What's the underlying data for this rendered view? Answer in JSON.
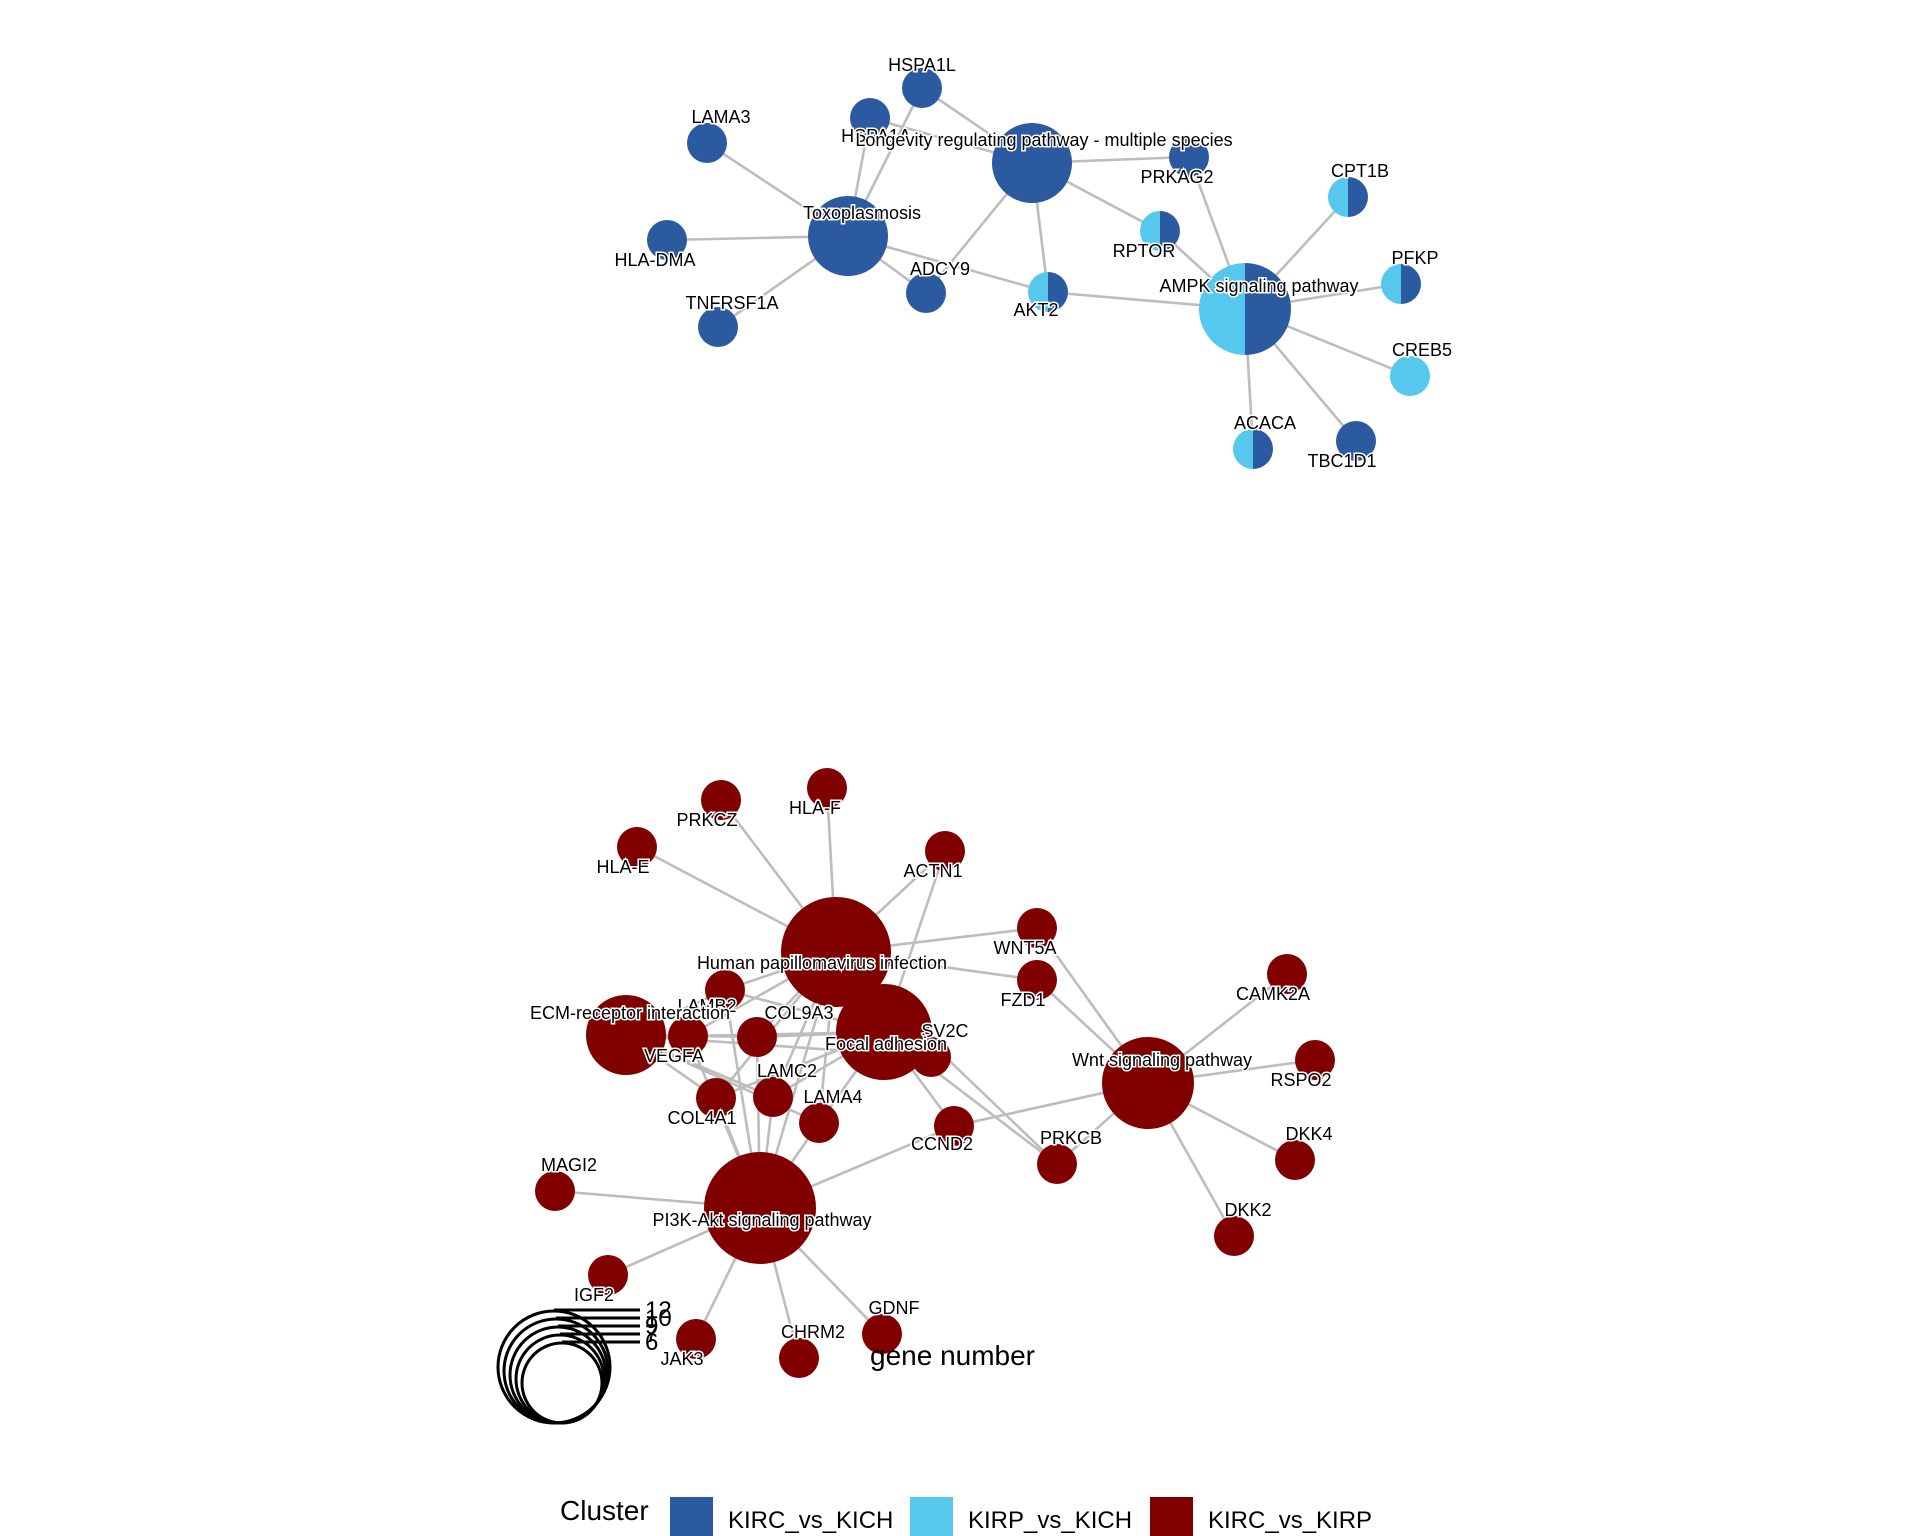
{
  "colors": {
    "KIRC_vs_KICH": "#2c5aa0",
    "KIRP_vs_KICH": "#56c8ed",
    "KIRC_vs_KIRP": "#800000",
    "edge": "#bdbdbd"
  },
  "legend": {
    "title": "Cluster",
    "entries": [
      {
        "name": "KIRC_vs_KICH",
        "color": "#2c5aa0"
      },
      {
        "name": "KIRP_vs_KICH",
        "color": "#56c8ed"
      },
      {
        "name": "KIRC_vs_KIRP",
        "color": "#800000"
      }
    ]
  },
  "size_legend": {
    "title": "gene number",
    "values": [
      "12",
      "10",
      "9",
      "7",
      "6"
    ]
  },
  "networks": [
    {
      "name": "top",
      "nodes": [
        {
          "id": "HSPA1L",
          "label": "HSPA1L",
          "kind": "gene",
          "slices": [
            {
              "c": "KIRC_vs_KICH"
            }
          ]
        },
        {
          "id": "HSPA1A",
          "label": "HSPA1A",
          "kind": "gene",
          "slices": [
            {
              "c": "KIRC_vs_KICH"
            }
          ]
        },
        {
          "id": "LAMA3",
          "label": "LAMA3",
          "kind": "gene",
          "slices": [
            {
              "c": "KIRC_vs_KICH"
            }
          ]
        },
        {
          "id": "HLA-DMA",
          "label": "HLA-DMA",
          "kind": "gene",
          "slices": [
            {
              "c": "KIRC_vs_KICH"
            }
          ]
        },
        {
          "id": "TNFRSF1A",
          "label": "TNFRSF1A",
          "kind": "gene",
          "slices": [
            {
              "c": "KIRC_vs_KICH"
            }
          ]
        },
        {
          "id": "ADCY9",
          "label": "ADCY9",
          "kind": "gene",
          "slices": [
            {
              "c": "KIRC_vs_KICH"
            }
          ]
        },
        {
          "id": "AKT2",
          "label": "AKT2",
          "kind": "gene",
          "slices": [
            {
              "c": "KIRP_vs_KICH"
            },
            {
              "c": "KIRC_vs_KICH"
            }
          ]
        },
        {
          "id": "PRKAG2",
          "label": "PRKAG2",
          "kind": "gene",
          "slices": [
            {
              "c": "KIRC_vs_KICH"
            }
          ]
        },
        {
          "id": "RPTOR",
          "label": "RPTOR",
          "kind": "gene",
          "slices": [
            {
              "c": "KIRP_vs_KICH"
            },
            {
              "c": "KIRC_vs_KICH"
            }
          ]
        },
        {
          "id": "CPT1B",
          "label": "CPT1B",
          "kind": "gene",
          "slices": [
            {
              "c": "KIRP_vs_KICH"
            },
            {
              "c": "KIRC_vs_KICH"
            }
          ]
        },
        {
          "id": "PFKP",
          "label": "PFKP",
          "kind": "gene",
          "slices": [
            {
              "c": "KIRP_vs_KICH"
            },
            {
              "c": "KIRC_vs_KICH"
            }
          ]
        },
        {
          "id": "CREB5",
          "label": "CREB5",
          "kind": "gene",
          "slices": [
            {
              "c": "KIRP_vs_KICH"
            }
          ]
        },
        {
          "id": "ACACA",
          "label": "ACACA",
          "kind": "gene",
          "slices": [
            {
              "c": "KIRP_vs_KICH"
            },
            {
              "c": "KIRC_vs_KICH"
            }
          ]
        },
        {
          "id": "TBC1D1",
          "label": "TBC1D1",
          "kind": "gene",
          "slices": [
            {
              "c": "KIRC_vs_KICH"
            }
          ]
        },
        {
          "id": "Toxoplasmosis",
          "label": "Toxoplasmosis",
          "kind": "pathway",
          "slices": [
            {
              "c": "KIRC_vs_KICH"
            }
          ]
        },
        {
          "id": "Longevity",
          "label": "Longevity regulating pathway - multiple species",
          "kind": "pathway",
          "slices": [
            {
              "c": "KIRC_vs_KICH"
            }
          ]
        },
        {
          "id": "AMPK",
          "label": "AMPK signaling pathway",
          "kind": "pathway",
          "slices": [
            {
              "c": "KIRP_vs_KICH"
            },
            {
              "c": "KIRC_vs_KICH"
            }
          ]
        }
      ],
      "edges": [
        [
          "Toxoplasmosis",
          "LAMA3"
        ],
        [
          "Toxoplasmosis",
          "HLA-DMA"
        ],
        [
          "Toxoplasmosis",
          "TNFRSF1A"
        ],
        [
          "Toxoplasmosis",
          "HSPA1A"
        ],
        [
          "Toxoplasmosis",
          "HSPA1L"
        ],
        [
          "Toxoplasmosis",
          "ADCY9"
        ],
        [
          "Toxoplasmosis",
          "AKT2"
        ],
        [
          "Longevity",
          "HSPA1A"
        ],
        [
          "Longevity",
          "HSPA1L"
        ],
        [
          "Longevity",
          "PRKAG2"
        ],
        [
          "Longevity",
          "RPTOR"
        ],
        [
          "Longevity",
          "AKT2"
        ],
        [
          "Longevity",
          "ADCY9"
        ],
        [
          "AMPK",
          "AKT2"
        ],
        [
          "AMPK",
          "PRKAG2"
        ],
        [
          "AMPK",
          "RPTOR"
        ],
        [
          "AMPK",
          "CPT1B"
        ],
        [
          "AMPK",
          "PFKP"
        ],
        [
          "AMPK",
          "CREB5"
        ],
        [
          "AMPK",
          "ACACA"
        ],
        [
          "AMPK",
          "TBC1D1"
        ]
      ]
    },
    {
      "name": "bottom",
      "nodes": [
        {
          "id": "PRKCZ",
          "label": "PRKCZ",
          "kind": "gene",
          "slices": [
            {
              "c": "KIRC_vs_KIRP"
            }
          ]
        },
        {
          "id": "HLA-F",
          "label": "HLA-F",
          "kind": "gene",
          "slices": [
            {
              "c": "KIRC_vs_KIRP"
            }
          ]
        },
        {
          "id": "HLA-E",
          "label": "HLA-E",
          "kind": "gene",
          "slices": [
            {
              "c": "KIRC_vs_KIRP"
            }
          ]
        },
        {
          "id": "ACTN1",
          "label": "ACTN1",
          "kind": "gene",
          "slices": [
            {
              "c": "KIRC_vs_KIRP"
            }
          ]
        },
        {
          "id": "WNT5A",
          "label": "WNT5A",
          "kind": "gene",
          "slices": [
            {
              "c": "KIRC_vs_KIRP"
            }
          ]
        },
        {
          "id": "FZD1",
          "label": "FZD1",
          "kind": "gene",
          "slices": [
            {
              "c": "KIRC_vs_KIRP"
            }
          ]
        },
        {
          "id": "CAMK2A",
          "label": "CAMK2A",
          "kind": "gene",
          "slices": [
            {
              "c": "KIRC_vs_KIRP"
            }
          ]
        },
        {
          "id": "RSPO2",
          "label": "RSPO2",
          "kind": "gene",
          "slices": [
            {
              "c": "KIRC_vs_KIRP"
            }
          ]
        },
        {
          "id": "DKK4",
          "label": "DKK4",
          "kind": "gene",
          "slices": [
            {
              "c": "KIRC_vs_KIRP"
            }
          ]
        },
        {
          "id": "DKK2",
          "label": "DKK2",
          "kind": "gene",
          "slices": [
            {
              "c": "KIRC_vs_KIRP"
            }
          ]
        },
        {
          "id": "PRKCB",
          "label": "PRKCB",
          "kind": "gene",
          "slices": [
            {
              "c": "KIRC_vs_KIRP"
            }
          ]
        },
        {
          "id": "CCND2",
          "label": "CCND2",
          "kind": "gene",
          "slices": [
            {
              "c": "KIRC_vs_KIRP"
            }
          ]
        },
        {
          "id": "SV2C",
          "label": "SV2C",
          "kind": "gene",
          "slices": [
            {
              "c": "KIRC_vs_KIRP"
            }
          ]
        },
        {
          "id": "LAMB2",
          "label": "LAMB2",
          "kind": "gene",
          "slices": [
            {
              "c": "KIRC_vs_KIRP"
            }
          ]
        },
        {
          "id": "COL9A3",
          "label": "COL9A3",
          "kind": "gene",
          "slices": [
            {
              "c": "KIRC_vs_KIRP"
            }
          ]
        },
        {
          "id": "VEGFA",
          "label": "VEGFA",
          "kind": "gene",
          "slices": [
            {
              "c": "KIRC_vs_KIRP"
            }
          ]
        },
        {
          "id": "LAMC2",
          "label": "LAMC2",
          "kind": "gene",
          "slices": [
            {
              "c": "KIRC_vs_KIRP"
            }
          ]
        },
        {
          "id": "COL4A1",
          "label": "COL4A1",
          "kind": "gene",
          "slices": [
            {
              "c": "KIRC_vs_KIRP"
            }
          ]
        },
        {
          "id": "LAMA4",
          "label": "LAMA4",
          "kind": "gene",
          "slices": [
            {
              "c": "KIRC_vs_KIRP"
            }
          ]
        },
        {
          "id": "MAGI2",
          "label": "MAGI2",
          "kind": "gene",
          "slices": [
            {
              "c": "KIRC_vs_KIRP"
            }
          ]
        },
        {
          "id": "IGF2",
          "label": "IGF2",
          "kind": "gene",
          "slices": [
            {
              "c": "KIRC_vs_KIRP"
            }
          ]
        },
        {
          "id": "JAK3",
          "label": "JAK3",
          "kind": "gene",
          "slices": [
            {
              "c": "KIRC_vs_KIRP"
            }
          ]
        },
        {
          "id": "CHRM2",
          "label": "CHRM2",
          "kind": "gene",
          "slices": [
            {
              "c": "KIRC_vs_KIRP"
            }
          ]
        },
        {
          "id": "GDNF",
          "label": "GDNF",
          "kind": "gene",
          "slices": [
            {
              "c": "KIRC_vs_KIRP"
            }
          ]
        },
        {
          "id": "HPV",
          "label": "Human papillomavirus infection",
          "kind": "pathway",
          "slices": [
            {
              "c": "KIRC_vs_KIRP"
            }
          ]
        },
        {
          "id": "ECM",
          "label": "ECM-receptor interaction",
          "kind": "pathway",
          "slices": [
            {
              "c": "KIRC_vs_KIRP"
            }
          ]
        },
        {
          "id": "Focal",
          "label": "Focal adhesion",
          "kind": "pathway",
          "slices": [
            {
              "c": "KIRC_vs_KIRP"
            }
          ]
        },
        {
          "id": "Wnt",
          "label": "Wnt signaling pathway",
          "kind": "pathway",
          "slices": [
            {
              "c": "KIRC_vs_KIRP"
            }
          ]
        },
        {
          "id": "PI3K",
          "label": "PI3K-Akt signaling pathway",
          "kind": "pathway",
          "slices": [
            {
              "c": "KIRC_vs_KIRP"
            }
          ]
        }
      ],
      "edges": [
        [
          "HPV",
          "PRKCZ"
        ],
        [
          "HPV",
          "HLA-F"
        ],
        [
          "HPV",
          "HLA-E"
        ],
        [
          "HPV",
          "ACTN1"
        ],
        [
          "HPV",
          "WNT5A"
        ],
        [
          "HPV",
          "FZD1"
        ],
        [
          "HPV",
          "LAMB2"
        ],
        [
          "HPV",
          "COL9A3"
        ],
        [
          "HPV",
          "VEGFA"
        ],
        [
          "HPV",
          "LAMC2"
        ],
        [
          "HPV",
          "COL4A1"
        ],
        [
          "HPV",
          "LAMA4"
        ],
        [
          "HPV",
          "PRKCB"
        ],
        [
          "HPV",
          "PI3K"
        ],
        [
          "ECM",
          "LAMB2"
        ],
        [
          "ECM",
          "COL9A3"
        ],
        [
          "ECM",
          "VEGFA"
        ],
        [
          "ECM",
          "LAMC2"
        ],
        [
          "ECM",
          "COL4A1"
        ],
        [
          "ECM",
          "LAMA4"
        ],
        [
          "ECM",
          "SV2C"
        ],
        [
          "Focal",
          "ACTN1"
        ],
        [
          "Focal",
          "LAMB2"
        ],
        [
          "Focal",
          "COL9A3"
        ],
        [
          "Focal",
          "VEGFA"
        ],
        [
          "Focal",
          "LAMC2"
        ],
        [
          "Focal",
          "COL4A1"
        ],
        [
          "Focal",
          "LAMA4"
        ],
        [
          "Focal",
          "CCND2"
        ],
        [
          "Focal",
          "PRKCB"
        ],
        [
          "Focal",
          "SV2C"
        ],
        [
          "Wnt",
          "WNT5A"
        ],
        [
          "Wnt",
          "FZD1"
        ],
        [
          "Wnt",
          "CAMK2A"
        ],
        [
          "Wnt",
          "RSPO2"
        ],
        [
          "Wnt",
          "DKK4"
        ],
        [
          "Wnt",
          "DKK2"
        ],
        [
          "Wnt",
          "PRKCB"
        ],
        [
          "Wnt",
          "CCND2"
        ],
        [
          "PI3K",
          "MAGI2"
        ],
        [
          "PI3K",
          "IGF2"
        ],
        [
          "PI3K",
          "JAK3"
        ],
        [
          "PI3K",
          "CHRM2"
        ],
        [
          "PI3K",
          "GDNF"
        ],
        [
          "PI3K",
          "VEGFA"
        ],
        [
          "PI3K",
          "LAMB2"
        ],
        [
          "PI3K",
          "COL9A3"
        ],
        [
          "PI3K",
          "COL4A1"
        ],
        [
          "PI3K",
          "LAMC2"
        ],
        [
          "PI3K",
          "LAMA4"
        ],
        [
          "PI3K",
          "CCND2"
        ]
      ]
    }
  ]
}
